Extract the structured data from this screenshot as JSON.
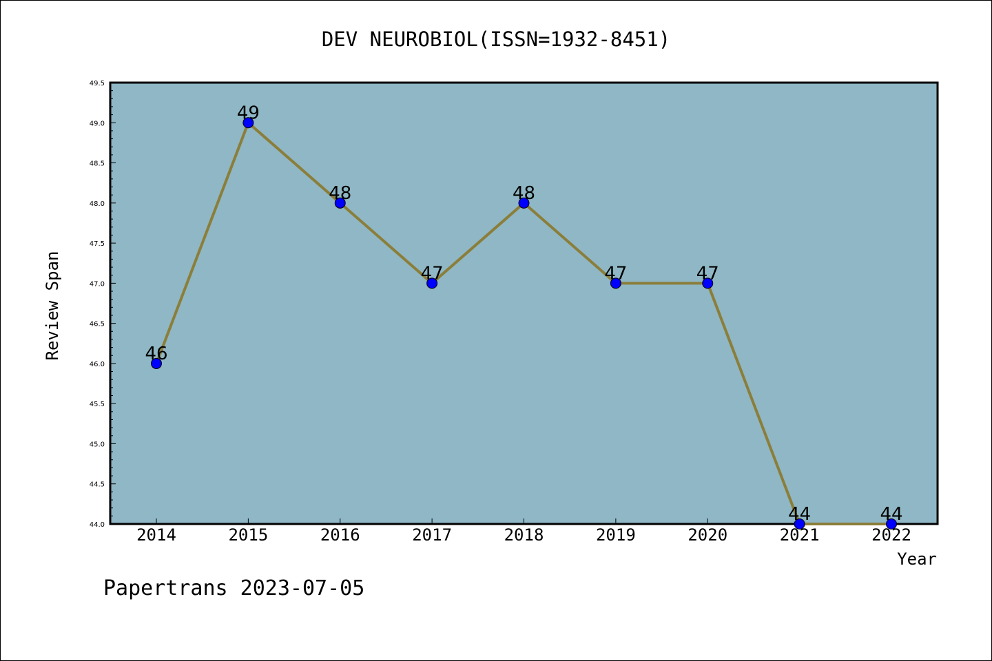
{
  "chart_data": {
    "type": "line",
    "title": "DEV NEUROBIOL(ISSN=1932-8451)",
    "xlabel": "Year",
    "ylabel": "Review Span",
    "categories": [
      "2014",
      "2015",
      "2016",
      "2017",
      "2018",
      "2019",
      "2020",
      "2021",
      "2022"
    ],
    "series": [
      {
        "values": [
          46,
          49,
          48,
          47,
          48,
          47,
          47,
          44,
          44
        ]
      }
    ],
    "data_labels": [
      "46",
      "49",
      "48",
      "47",
      "48",
      "47",
      "47",
      "44",
      "44"
    ],
    "ylim": [
      44.0,
      49.5
    ],
    "yticks": [
      "44.0",
      "44.5",
      "45.0",
      "45.5",
      "46.0",
      "46.5",
      "47.0",
      "47.5",
      "48.0",
      "48.5",
      "49.0",
      "49.5"
    ],
    "grid": false,
    "legend": "none",
    "colors": {
      "plot_background": "#8fb7c5",
      "line": "#8b7e3a",
      "marker": "#0000ff"
    }
  },
  "footer": {
    "watermark": "Papertrans 2023-07-05"
  }
}
